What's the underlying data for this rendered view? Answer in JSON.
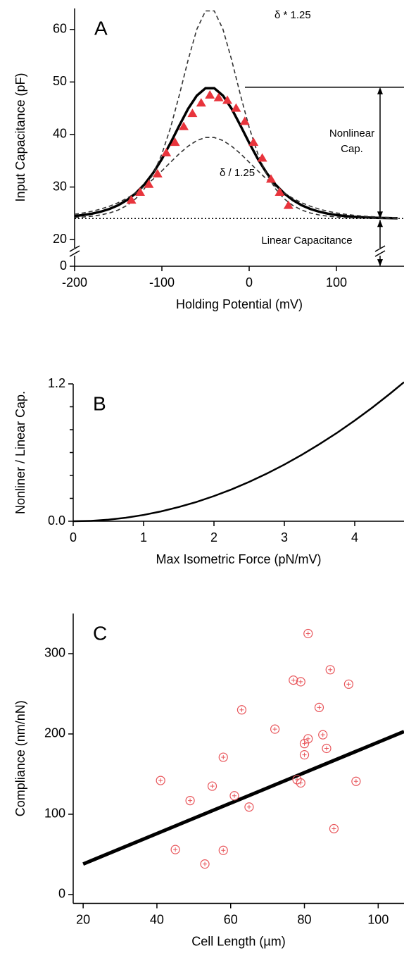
{
  "chart_data": [
    {
      "type": "line",
      "panel_label": "A",
      "xlabel": "Holding Potential (mV)",
      "ylabel": "Input Capacitance (pF)",
      "xlim": [
        -200,
        177.4
      ],
      "ylim": [
        18,
        64
      ],
      "xticks": [
        -200,
        -100,
        0,
        100
      ],
      "yticks": [
        20,
        30,
        40,
        50,
        60
      ],
      "lower_yticks": [
        0
      ],
      "x": [
        -200,
        -190,
        -180,
        -170,
        -160,
        -150,
        -140,
        -130,
        -120,
        -110,
        -100,
        -90,
        -80,
        -70,
        -60,
        -50,
        -40,
        -30,
        -20,
        -10,
        0,
        10,
        20,
        30,
        40,
        50,
        60,
        70,
        80,
        90,
        100,
        110,
        120,
        130,
        140,
        150,
        160,
        170
      ],
      "series": [
        {
          "color": "#000000",
          "style": "solid",
          "values": [
            24.47,
            24.67,
            24.93,
            25.31,
            25.83,
            26.54,
            27.51,
            28.81,
            30.5,
            32.68,
            35.34,
            38.42,
            41.71,
            44.88,
            47.4,
            48.82,
            48.82,
            47.4,
            44.88,
            41.71,
            38.42,
            35.34,
            32.68,
            30.5,
            28.81,
            27.51,
            26.54,
            25.83,
            25.31,
            24.93,
            24.67,
            24.47,
            24.34,
            24.24,
            24.17,
            24.12,
            24.08,
            24.06
          ]
        },
        {
          "color": "#333333",
          "style": "dashed",
          "values": [
            24.19,
            24.29,
            24.45,
            24.69,
            25.06,
            25.63,
            26.49,
            27.78,
            29.7,
            32.45,
            36.29,
            41.35,
            47.53,
            54.15,
            60.03,
            63.53,
            63.53,
            60.03,
            54.15,
            47.53,
            41.35,
            36.29,
            32.45,
            29.7,
            27.78,
            26.49,
            25.63,
            25.06,
            24.69,
            24.45,
            24.29,
            24.19,
            24.12,
            24.08,
            24.05,
            24.03,
            24.02,
            24.01
          ]
        },
        {
          "color": "#333333",
          "style": "dashed",
          "values": [
            24.81,
            25.07,
            25.39,
            25.81,
            26.35,
            27.02,
            27.86,
            28.88,
            30.11,
            31.5,
            33.08,
            34.73,
            36.35,
            37.77,
            38.85,
            39.43,
            39.43,
            38.85,
            37.77,
            36.35,
            34.73,
            33.08,
            31.5,
            30.11,
            28.88,
            27.86,
            27.02,
            26.35,
            25.81,
            25.39,
            25.07,
            24.81,
            24.62,
            24.47,
            24.36,
            24.27,
            24.21,
            24.16
          ]
        },
        {
          "color": "#e8343c",
          "marker": "triangle",
          "x": [
            -135,
            -125,
            -115,
            -105,
            -95,
            -85,
            -75,
            -65,
            -55,
            -45,
            -35,
            -25,
            -15,
            -5,
            5,
            15,
            25,
            35,
            45
          ],
          "values": [
            27.5,
            29,
            30.5,
            32.5,
            36.5,
            38.5,
            41.5,
            44,
            46,
            47.5,
            47,
            46.5,
            45,
            42.5,
            38.5,
            35.5,
            31.5,
            29,
            26.5
          ]
        }
      ],
      "baseline": 24,
      "nonlinear_cap_range": [
        24,
        49
      ],
      "annotations": [
        "δ * 1.25",
        "δ / 1.25",
        "Nonlinear",
        "Cap.",
        "Linear Capacitance"
      ]
    },
    {
      "type": "line",
      "panel_label": "B",
      "xlabel": "Max Isometric Force (pN/mV)",
      "ylabel": "Nonliner  / Linear  Cap.",
      "xlim": [
        0,
        4.7
      ],
      "ylim": [
        0,
        1.2
      ],
      "xticks": [
        0,
        1,
        2,
        3,
        4
      ],
      "yticks": [
        {
          "value": 0,
          "label": "0.0"
        },
        1.2
      ],
      "yminor_ticks": [
        0.2,
        0.4,
        0.6,
        0.8,
        1.0
      ],
      "color": "#000000",
      "x": [
        0,
        0.25,
        0.5,
        0.75,
        1,
        1.25,
        1.5,
        1.75,
        2,
        2.25,
        2.5,
        2.75,
        3,
        3.25,
        3.5,
        3.75,
        4,
        4.25,
        4.5,
        4.7
      ],
      "values": [
        0,
        0.003,
        0.014,
        0.031,
        0.055,
        0.086,
        0.124,
        0.168,
        0.22,
        0.278,
        0.344,
        0.416,
        0.495,
        0.581,
        0.674,
        0.773,
        0.88,
        0.993,
        1.114,
        1.215
      ]
    },
    {
      "type": "scatter",
      "panel_label": "C",
      "xlabel": "Cell Length (µm)",
      "ylabel": "Compliance (nm/nN)",
      "xlim": [
        17.3,
        107
      ],
      "ylim": [
        -11,
        350
      ],
      "xticks": [
        20,
        40,
        60,
        80,
        100
      ],
      "yticks": [
        0,
        100,
        200,
        300
      ],
      "color": "#e8555a",
      "x": [
        41,
        45,
        49,
        53,
        55,
        58,
        58,
        61,
        63,
        65,
        72,
        77,
        78,
        79,
        79,
        80,
        80,
        81,
        81,
        84,
        85,
        86,
        87,
        88,
        92,
        94
      ],
      "values": [
        142,
        56,
        117,
        38,
        135,
        55,
        171,
        123,
        230,
        109,
        206,
        267,
        143,
        265,
        139,
        188,
        174,
        194,
        325,
        233,
        199,
        182,
        280,
        82,
        262,
        141
      ],
      "fit": {
        "color": "#000000",
        "x": [
          20,
          107
        ],
        "values": [
          38,
          203
        ]
      }
    }
  ]
}
